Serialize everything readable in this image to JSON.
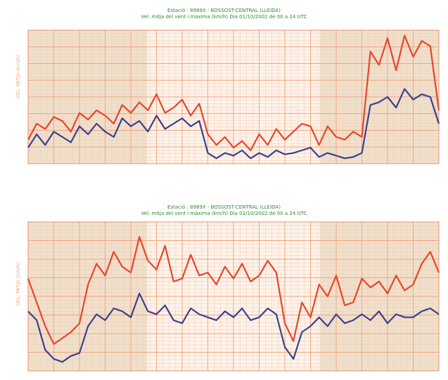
{
  "chart_data": [
    {
      "type": "line",
      "title": "Estació : 8989X - BOSSOST-CENTRAL (LLEIDA)",
      "subtitle": "Vel. mitja del vent i màxima (km/h) Dia 01/10/2002 de 00 a 24 UTC",
      "ylabel": "VEL. MITJA (km/h)",
      "x": [
        0,
        1,
        2,
        3,
        4,
        5,
        6,
        7,
        8,
        9,
        10,
        11,
        12,
        13,
        14,
        15,
        16,
        17,
        18,
        19,
        20,
        21,
        22,
        23,
        24,
        25,
        26,
        27,
        28,
        29,
        30,
        31,
        32,
        33,
        34,
        35,
        36,
        37,
        38,
        39,
        40,
        41,
        42,
        43,
        44,
        45,
        46,
        47,
        48
      ],
      "xlim": [
        0,
        48
      ],
      "ylim": [
        0,
        100
      ],
      "grid": true,
      "series": [
        {
          "color": "#e8462a",
          "values": [
            18,
            30,
            26,
            35,
            32,
            24,
            38,
            33,
            40,
            36,
            30,
            44,
            38,
            46,
            40,
            52,
            38,
            42,
            48,
            36,
            45,
            22,
            14,
            20,
            12,
            17,
            10,
            22,
            14,
            26,
            18,
            24,
            30,
            28,
            14,
            28,
            20,
            18,
            24,
            20,
            84,
            74,
            94,
            70,
            96,
            80,
            92,
            88,
            40
          ]
        },
        {
          "color": "#3b3f8f",
          "values": [
            12,
            22,
            14,
            24,
            20,
            16,
            28,
            22,
            30,
            24,
            20,
            34,
            28,
            32,
            24,
            36,
            26,
            30,
            34,
            28,
            32,
            8,
            4,
            8,
            6,
            10,
            4,
            8,
            5,
            10,
            7,
            8,
            10,
            12,
            5,
            8,
            6,
            4,
            5,
            8,
            44,
            46,
            50,
            42,
            56,
            48,
            52,
            50,
            30
          ]
        }
      ]
    },
    {
      "type": "line",
      "title": "Estació : 8989X - BOSSOST-CENTRAL (LLEIDA)",
      "subtitle": "Vel. mitja del vent i màxima (km/h) Dia 02/10/2002 de 00 a 24 UTC",
      "ylabel": "VEL. MITJA (km/h)",
      "x": [
        0,
        1,
        2,
        3,
        4,
        5,
        6,
        7,
        8,
        9,
        10,
        11,
        12,
        13,
        14,
        15,
        16,
        17,
        18,
        19,
        20,
        21,
        22,
        23,
        24,
        25,
        26,
        27,
        28,
        29,
        30,
        31,
        32,
        33,
        34,
        35,
        36,
        37,
        38,
        39,
        40,
        41,
        42,
        43,
        44,
        45,
        46,
        47,
        48
      ],
      "xlim": [
        0,
        48
      ],
      "ylim": [
        0,
        100
      ],
      "grid": true,
      "series": [
        {
          "color": "#e8462a",
          "values": [
            62,
            46,
            30,
            18,
            22,
            26,
            32,
            58,
            72,
            64,
            80,
            70,
            66,
            90,
            74,
            68,
            84,
            60,
            62,
            78,
            64,
            66,
            58,
            70,
            62,
            72,
            60,
            64,
            74,
            66,
            32,
            20,
            46,
            36,
            58,
            50,
            64,
            44,
            46,
            62,
            56,
            60,
            52,
            64,
            54,
            58,
            72,
            80,
            66
          ]
        },
        {
          "color": "#3b3f8f",
          "values": [
            40,
            34,
            14,
            8,
            6,
            10,
            12,
            30,
            38,
            34,
            42,
            40,
            36,
            52,
            40,
            38,
            44,
            34,
            32,
            42,
            38,
            36,
            34,
            40,
            36,
            42,
            34,
            36,
            42,
            38,
            16,
            8,
            26,
            30,
            36,
            30,
            38,
            32,
            34,
            38,
            34,
            40,
            32,
            38,
            36,
            36,
            40,
            42,
            38
          ]
        }
      ]
    }
  ]
}
